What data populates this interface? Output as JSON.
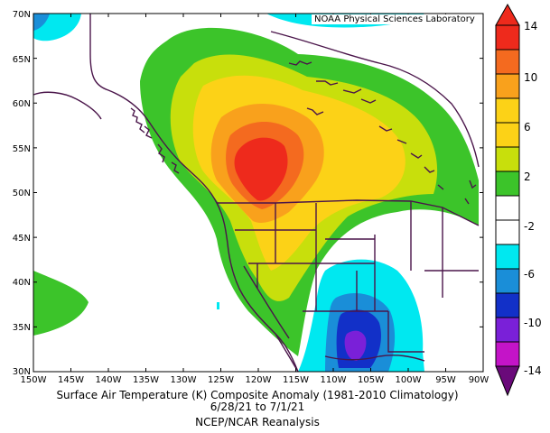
{
  "map": {
    "credit": "NOAA Physical Sciences Laboratory",
    "lat_labels": [
      "70N",
      "65N",
      "60N",
      "55N",
      "50N",
      "45N",
      "40N",
      "35N",
      "30N"
    ],
    "lon_labels": [
      "150W",
      "145W",
      "140W",
      "135W",
      "130W",
      "125W",
      "120W",
      "115W",
      "110W",
      "105W",
      "100W",
      "95W",
      "90W"
    ],
    "lat_range": [
      30,
      70
    ],
    "lon_range": [
      -150,
      -90
    ]
  },
  "caption": {
    "line1": "Surface Air Temperature (K) Composite Anomaly (1981-2010 Climatology)",
    "line2": "6/28/21 to 7/1/21",
    "line3": "NCEP/NCAR Reanalysis"
  },
  "colorbar": {
    "labels": [
      "14",
      "10",
      "6",
      "2",
      "-2",
      "-6",
      "-10",
      "-14"
    ],
    "colors": [
      "#ee2a1c",
      "#f46a1f",
      "#f9a11c",
      "#fcd217",
      "#c8df0c",
      "#3cc42a",
      "#ffffff",
      "#ffffff",
      "#00e8f0",
      "#1a8ed8",
      "#1230c8",
      "#7a20d8",
      "#c414c8",
      "#6a0a7a"
    ]
  },
  "colors": {
    "land_outline": "#4a154a",
    "red": "#ee2a1c",
    "orange_red": "#f46a1f",
    "orange": "#f9a11c",
    "yellow": "#fcd217",
    "yellow_green": "#c8df0c",
    "green": "#3cc42a",
    "cyan": "#00e8f0",
    "blue": "#1a8ed8",
    "dark_blue": "#1230c8",
    "purple": "#7a20d8"
  }
}
